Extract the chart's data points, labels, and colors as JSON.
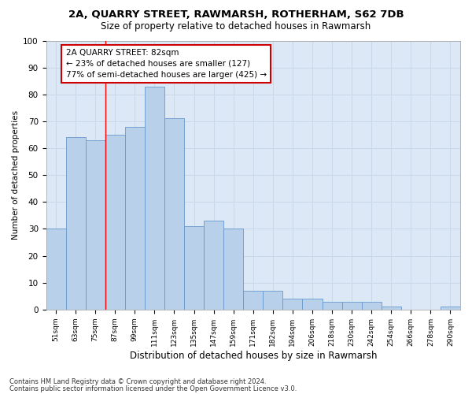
{
  "title1": "2A, QUARRY STREET, RAWMARSH, ROTHERHAM, S62 7DB",
  "title2": "Size of property relative to detached houses in Rawmarsh",
  "xlabel": "Distribution of detached houses by size in Rawmarsh",
  "ylabel": "Number of detached properties",
  "categories": [
    "51sqm",
    "63sqm",
    "75sqm",
    "87sqm",
    "99sqm",
    "111sqm",
    "123sqm",
    "135sqm",
    "147sqm",
    "159sqm",
    "171sqm",
    "182sqm",
    "194sqm",
    "206sqm",
    "218sqm",
    "230sqm",
    "242sqm",
    "254sqm",
    "266sqm",
    "278sqm",
    "290sqm"
  ],
  "values": [
    30,
    64,
    63,
    65,
    68,
    83,
    71,
    31,
    33,
    30,
    7,
    7,
    4,
    4,
    3,
    3,
    3,
    1,
    0,
    0,
    1
  ],
  "bar_color": "#b8d0ea",
  "bar_edge_color": "#6699cc",
  "red_line_x": 2.5,
  "annotation_text": "2A QUARRY STREET: 82sqm\n← 23% of detached houses are smaller (127)\n77% of semi-detached houses are larger (425) →",
  "annotation_box_color": "#ffffff",
  "annotation_box_edge": "#cc0000",
  "ylim": [
    0,
    100
  ],
  "yticks": [
    0,
    10,
    20,
    30,
    40,
    50,
    60,
    70,
    80,
    90,
    100
  ],
  "grid_color": "#c8d8e8",
  "background_color": "#dce8f5",
  "footer1": "Contains HM Land Registry data © Crown copyright and database right 2024.",
  "footer2": "Contains public sector information licensed under the Open Government Licence v3.0."
}
